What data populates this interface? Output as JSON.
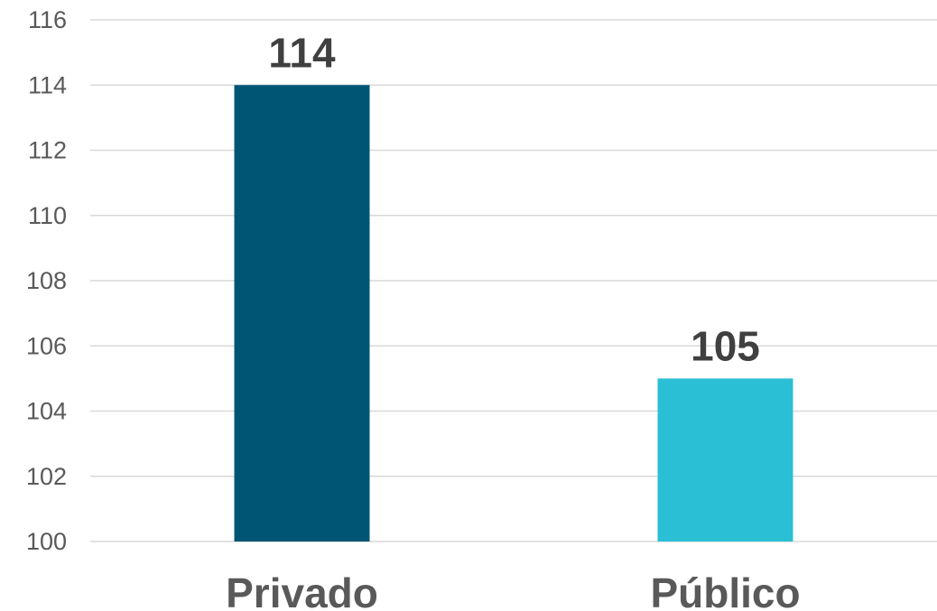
{
  "chart_data": {
    "type": "bar",
    "title": "",
    "xlabel": "",
    "ylabel": "",
    "categories": [
      "Privado",
      "Público"
    ],
    "values": [
      114,
      105
    ],
    "data_labels": [
      "114",
      "105"
    ],
    "ylim": [
      100,
      116
    ],
    "yticks": [
      100,
      102,
      104,
      106,
      108,
      110,
      112,
      114,
      116
    ],
    "ytick_labels": [
      "100",
      "102",
      "104",
      "106",
      "108",
      "110",
      "112",
      "114",
      "116"
    ],
    "grid": true,
    "legend": "none",
    "colors": [
      "#005575",
      "#2bbfd6"
    ]
  }
}
